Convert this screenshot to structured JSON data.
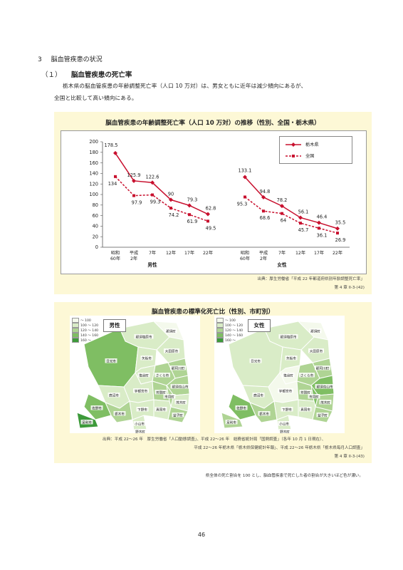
{
  "section": {
    "number": "3",
    "title": "脳血管疾患の状況"
  },
  "subsection": {
    "number": "（１）",
    "title": "脳血管疾患の死亡率"
  },
  "paragraph": {
    "line1": "栃木県の脳血管疾患の年齢調整死亡率（人口 10 万対）は、男女ともに近年は減少傾向にあるが、",
    "line2": "全国と比較して高い傾向にある。"
  },
  "figure1": {
    "title": "脳血管疾患の年齢調整死亡率（人口 10 万対）の推移（性別、全国・栃木県）",
    "source": "出典：厚生労働省「平成 22 年都道府県別年齢調整死亡率」",
    "ref": "第 4 章 II-3-(42)"
  },
  "chart_data": {
    "type": "line",
    "title": "脳血管疾患の年齢調整死亡率（人口 10 万対）の推移（性別、全国・栃木県）",
    "categories": [
      "昭和60年",
      "平成2年",
      "7年",
      "12年",
      "17年",
      "22年"
    ],
    "category_lines": [
      [
        "昭和",
        "60年"
      ],
      [
        "平成",
        "2年"
      ],
      [
        "7年",
        ""
      ],
      [
        "12年",
        ""
      ],
      [
        "17年",
        ""
      ],
      [
        "22年",
        ""
      ]
    ],
    "groups": [
      {
        "label": "男性",
        "series": [
          {
            "name": "栃木県",
            "values": [
              178.5,
              125.9,
              122.6,
              90,
              79.3,
              62.8
            ]
          },
          {
            "name": "全国",
            "values": [
              134,
              97.9,
              99.3,
              74.2,
              61.9,
              49.5
            ]
          }
        ]
      },
      {
        "label": "女性",
        "series": [
          {
            "name": "栃木県",
            "values": [
              133.1,
              94.8,
              78.2,
              56.1,
              46.4,
              35.5
            ]
          },
          {
            "name": "全国",
            "values": [
              95.3,
              68.6,
              64,
              45.7,
              36.1,
              26.9
            ]
          }
        ]
      }
    ],
    "yticks": [
      0,
      20,
      40,
      60,
      80,
      100,
      120,
      140,
      160,
      180,
      200
    ],
    "ylim": [
      0,
      200
    ],
    "legend": [
      "栃木県",
      "全国"
    ],
    "legend_position": "top-right",
    "colors": {
      "tochigi": "#c8102e",
      "national": "#c8102e"
    }
  },
  "figure2": {
    "title": "脳血管疾患の標準化死亡比（性別、市町別）",
    "male_label": "男性",
    "female_label": "女性",
    "map_legend": [
      "～ 100",
      "100 ～ 120",
      "120 ～ 140",
      "140 ～ 160",
      "160 ～"
    ],
    "map_colors": [
      "#f4f9ec",
      "#d9ecc7",
      "#afd494",
      "#7fbe63",
      "#3d9a3a"
    ],
    "male_city_labels": [
      "那須塩原市",
      "那須町",
      "大田原市",
      "日光市",
      "矢板市",
      "那珂川町",
      "塩谷町",
      "さくら市",
      "那須烏山市",
      "鹿沼市",
      "宇都宮市",
      "芳賀町",
      "市貝町",
      "茂木町",
      "佐野市",
      "栃木市",
      "真岡市",
      "益子町",
      "足利市",
      "小山市",
      "下野市",
      "野木町"
    ],
    "female_city_labels": [
      "那須塩原市",
      "那須町",
      "大田原市",
      "日光市",
      "矢板市",
      "那珂川町",
      "塩谷町",
      "さくら市",
      "那須烏山市",
      "鹿沼市",
      "宇都宮市",
      "芳賀町",
      "市貝町",
      "茂木町",
      "佐野市",
      "栃木市",
      "真岡市",
      "益子町",
      "足利市",
      "小山市",
      "下野市",
      "野木町"
    ],
    "source1": "出典：平成 22～26 年　厚生労働省「人口動態調査」、平成 22～26 年　総務省統計局「国勢調査」（各年 10 月 1 日現在）、",
    "source2": "平成 22～26 年栃木県「栃木県保健統計年報」、平成 22～26 年栃木県「栃木県毎月人口調査」",
    "ref": "第 4 章 II-3-(43)",
    "note": "県全体の死亡割合を 100 とし、脳血管疾患で死亡した者の割合が大きいほど色が濃い。"
  },
  "page_number": "46"
}
